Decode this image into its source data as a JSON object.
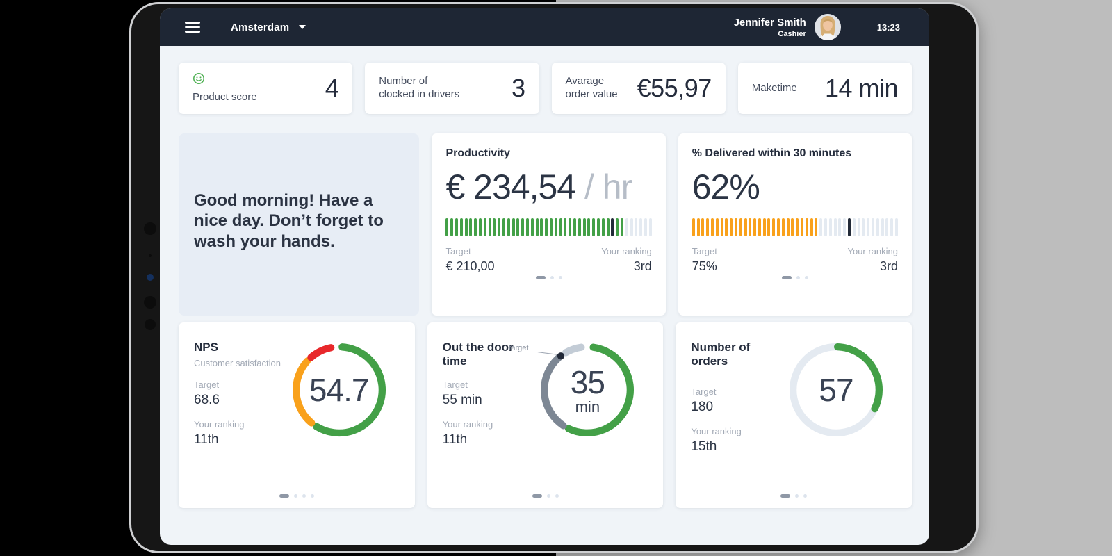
{
  "colors": {
    "green": "#43a047",
    "orange": "#f9a11b",
    "red": "#e8282b",
    "marker": "#222a38",
    "light_tick": "#e4eaf1",
    "gray_ring": "#7d8794",
    "light_ring": "#c3ccd6",
    "ring_track": "#e4eaf1",
    "header_bg": "#1e2634",
    "dot_active": "#8f98a6",
    "dot_inactive": "#dde4ed"
  },
  "header": {
    "location": "Amsterdam",
    "user_name": "Jennifer Smith",
    "user_role": "Cashier",
    "time": "13:23"
  },
  "stats": [
    {
      "label1": "Product score",
      "label2": "",
      "value": "4",
      "icon": "smiley-icon"
    },
    {
      "label1": "Number of",
      "label2": "clocked in drivers",
      "value": "3"
    },
    {
      "label1": "Avarage",
      "label2": "order value",
      "value": "€55,97"
    },
    {
      "label1": "Maketime",
      "label2": "",
      "value": "14 min"
    }
  ],
  "greeting": {
    "text": "Good morning! Have a nice day. Don’t forget to wash your hands."
  },
  "cards": {
    "productivity": {
      "title": "Productivity",
      "value": "€ 234,54",
      "unit": " / hr",
      "target_label": "Target",
      "target_value": "€ 210,00",
      "ranking_label": "Your ranking",
      "ranking_value": "3rd",
      "gauge": {
        "type": "tick-bar",
        "tick_count": 44,
        "value_ticks": 38,
        "marker_tick": 35,
        "color": "#43a047"
      },
      "dots": 3
    },
    "delivered": {
      "title": "% Delivered within 30 minutes",
      "value": "62%",
      "target_label": "Target",
      "target_value": "75%",
      "ranking_label": "Your ranking",
      "ranking_value": "3rd",
      "gauge": {
        "type": "tick-bar",
        "tick_count": 44,
        "value_ticks": 27,
        "marker_tick": 33,
        "color": "#f9a11b"
      },
      "dots": 3
    },
    "nps": {
      "title": "NPS",
      "subtitle": "Customer satisfaction",
      "target_label": "Target",
      "target_value": "68.6",
      "ranking_label": "Your ranking",
      "ranking_value": "11th",
      "value": "54.7",
      "gauge": {
        "type": "ring",
        "segments": [
          {
            "color": "#43a047",
            "from": 4,
            "to": 212
          },
          {
            "color": "#f9a11b",
            "from": 220,
            "to": 312
          },
          {
            "color": "#e8282b",
            "from": 319,
            "to": 349
          }
        ]
      },
      "dots": 4
    },
    "out_door": {
      "title": "Out the door time",
      "target_label": "Target",
      "target_value": "55 min",
      "ranking_label": "Your ranking",
      "ranking_value": "11th",
      "value": "35",
      "unit": "min",
      "marker_label": "target",
      "gauge": {
        "type": "ring",
        "segments": [
          {
            "color": "#43a047",
            "from": 8,
            "to": 206
          },
          {
            "color": "#7d8794",
            "from": 214,
            "to": 318
          },
          {
            "color": "#c3ccd6",
            "from": 330,
            "to": 352
          }
        ],
        "dot_angle": 322
      },
      "dots": 3
    },
    "orders": {
      "title": "Number of orders",
      "target_label": "Target",
      "target_value": "180",
      "ranking_label": "Your ranking",
      "ranking_value": "15th",
      "value": "57",
      "gauge": {
        "type": "ring",
        "segments": [
          {
            "color": "#e4eaf1",
            "from": 0,
            "to": 360
          },
          {
            "color": "#43a047",
            "from": 2,
            "to": 116
          }
        ]
      },
      "dots": 3
    }
  }
}
